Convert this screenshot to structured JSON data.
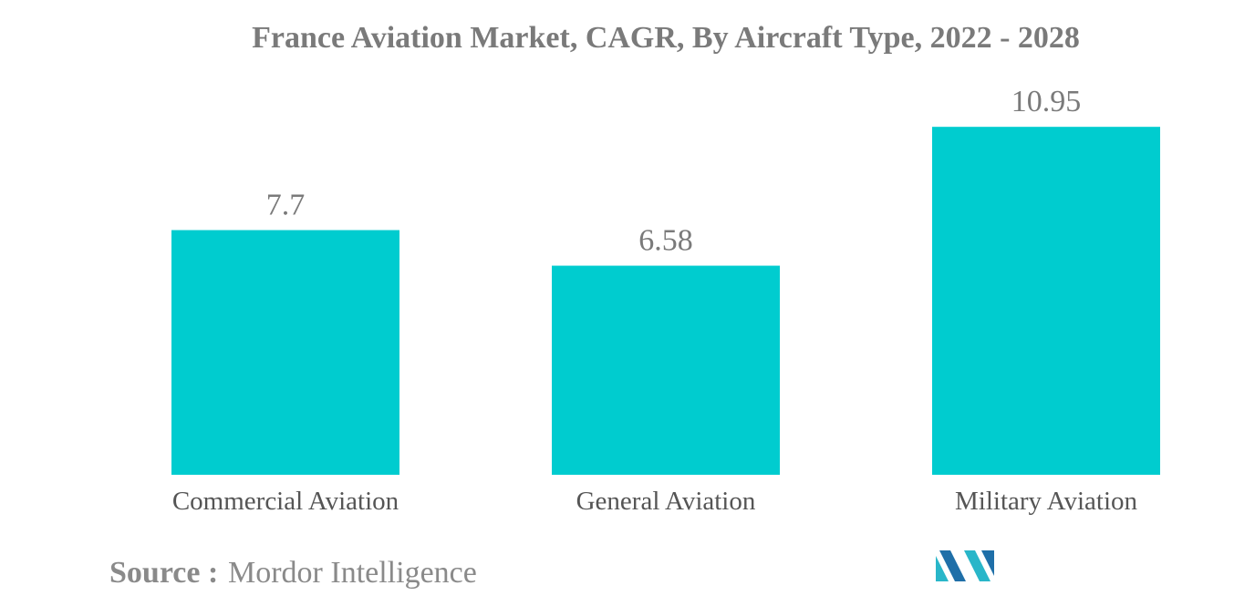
{
  "chart_data": {
    "type": "bar",
    "title": "France Aviation Market, CAGR, By Aircraft Type, 2022 - 2028",
    "categories": [
      "Commercial Aviation",
      "General Aviation",
      "Military Aviation"
    ],
    "values": [
      7.7,
      6.58,
      10.95
    ],
    "value_labels": [
      "7.7",
      "6.58",
      "10.95"
    ],
    "xlabel": "",
    "ylabel": "",
    "ylim": [
      0,
      11.5
    ],
    "grid": false,
    "legend": "none",
    "bar_color": "#00cccf"
  },
  "source": {
    "prefix": "Source :",
    "name": "Mordor Intelligence"
  },
  "logo": {
    "icon": "mordor-intelligence-logo-icon",
    "colors": [
      "#1f6fa8",
      "#29b6c9"
    ]
  }
}
